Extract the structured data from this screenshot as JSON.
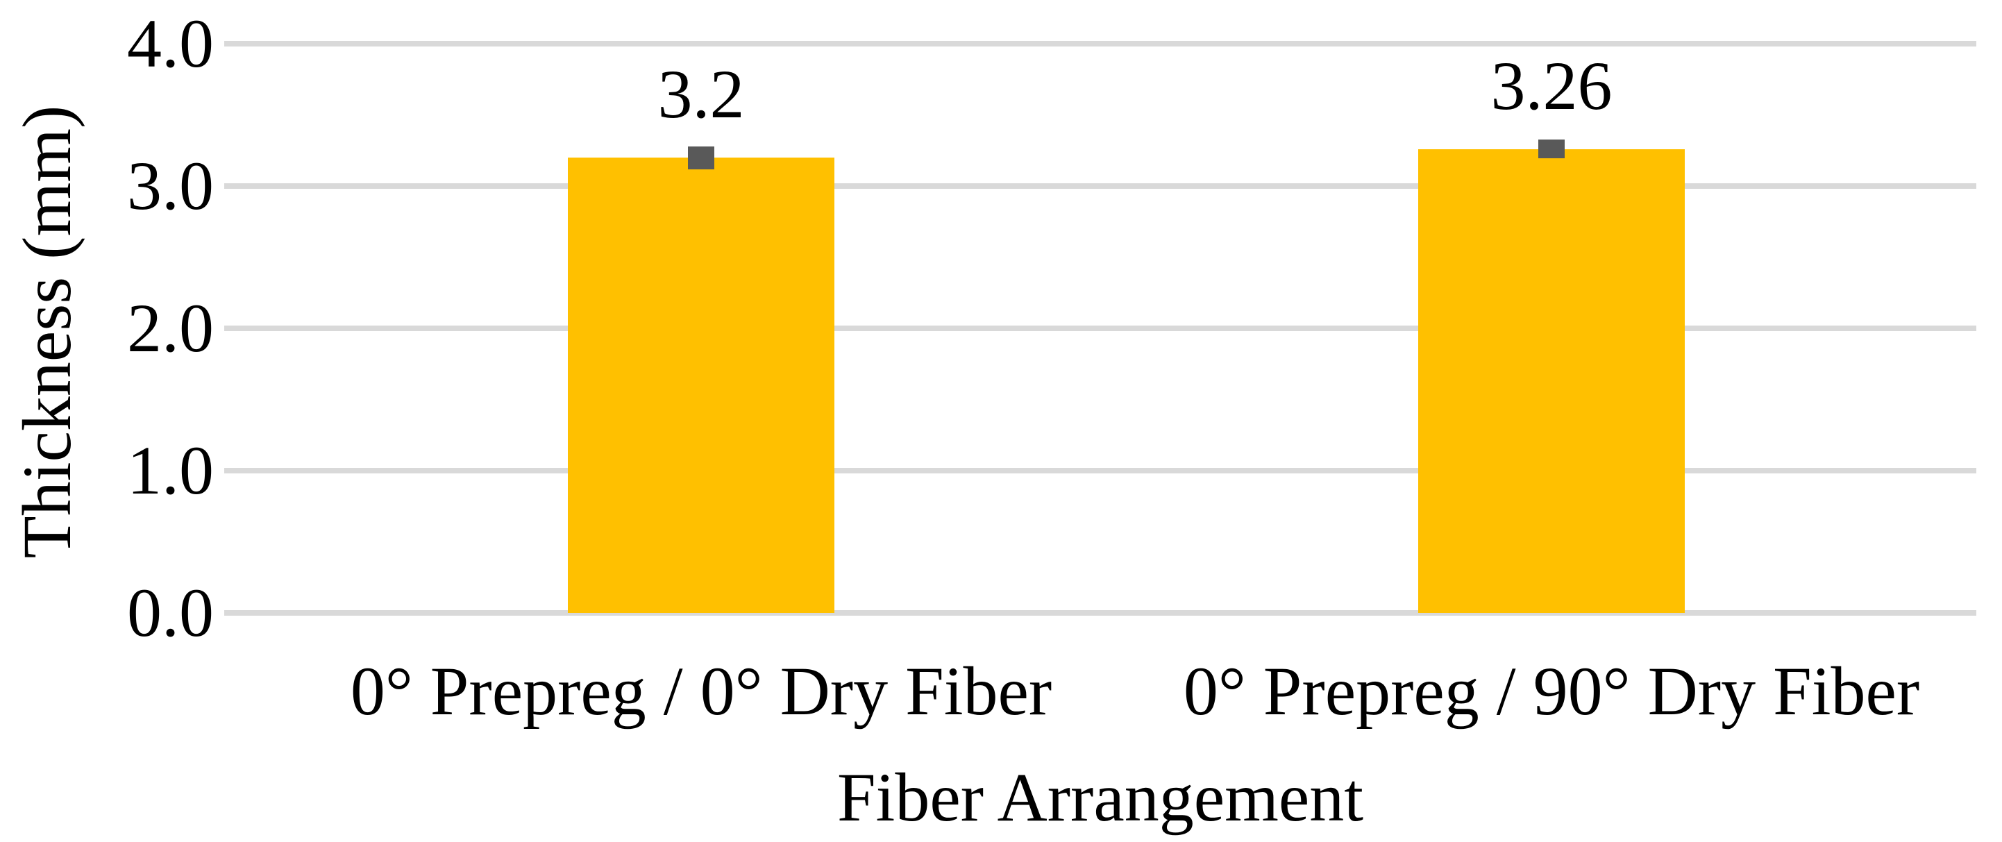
{
  "chart_data": {
    "type": "bar",
    "title": "",
    "xlabel": "Fiber Arrangement",
    "ylabel": "Thickness (mm)",
    "categories": [
      "0° Prepreg / 0° Dry Fiber",
      "0° Prepreg / 90° Dry Fiber"
    ],
    "values": [
      3.2,
      3.26
    ],
    "data_labels": [
      "3.2",
      "3.26"
    ],
    "error_bars": [
      0.08,
      0.065
    ],
    "ylim": [
      0.0,
      4.0
    ],
    "ytick_labels": [
      "0.0",
      "1.0",
      "2.0",
      "3.0",
      "4.0"
    ],
    "ytick_values": [
      0.0,
      1.0,
      2.0,
      3.0,
      4.0
    ],
    "grid": "horizontal-only",
    "legend": "none",
    "colors": {
      "bar_fill": "#FFC000",
      "error_marker": "#595959",
      "gridline": "#D9D9D9",
      "text": "#000000",
      "background": "#FFFFFF"
    }
  }
}
